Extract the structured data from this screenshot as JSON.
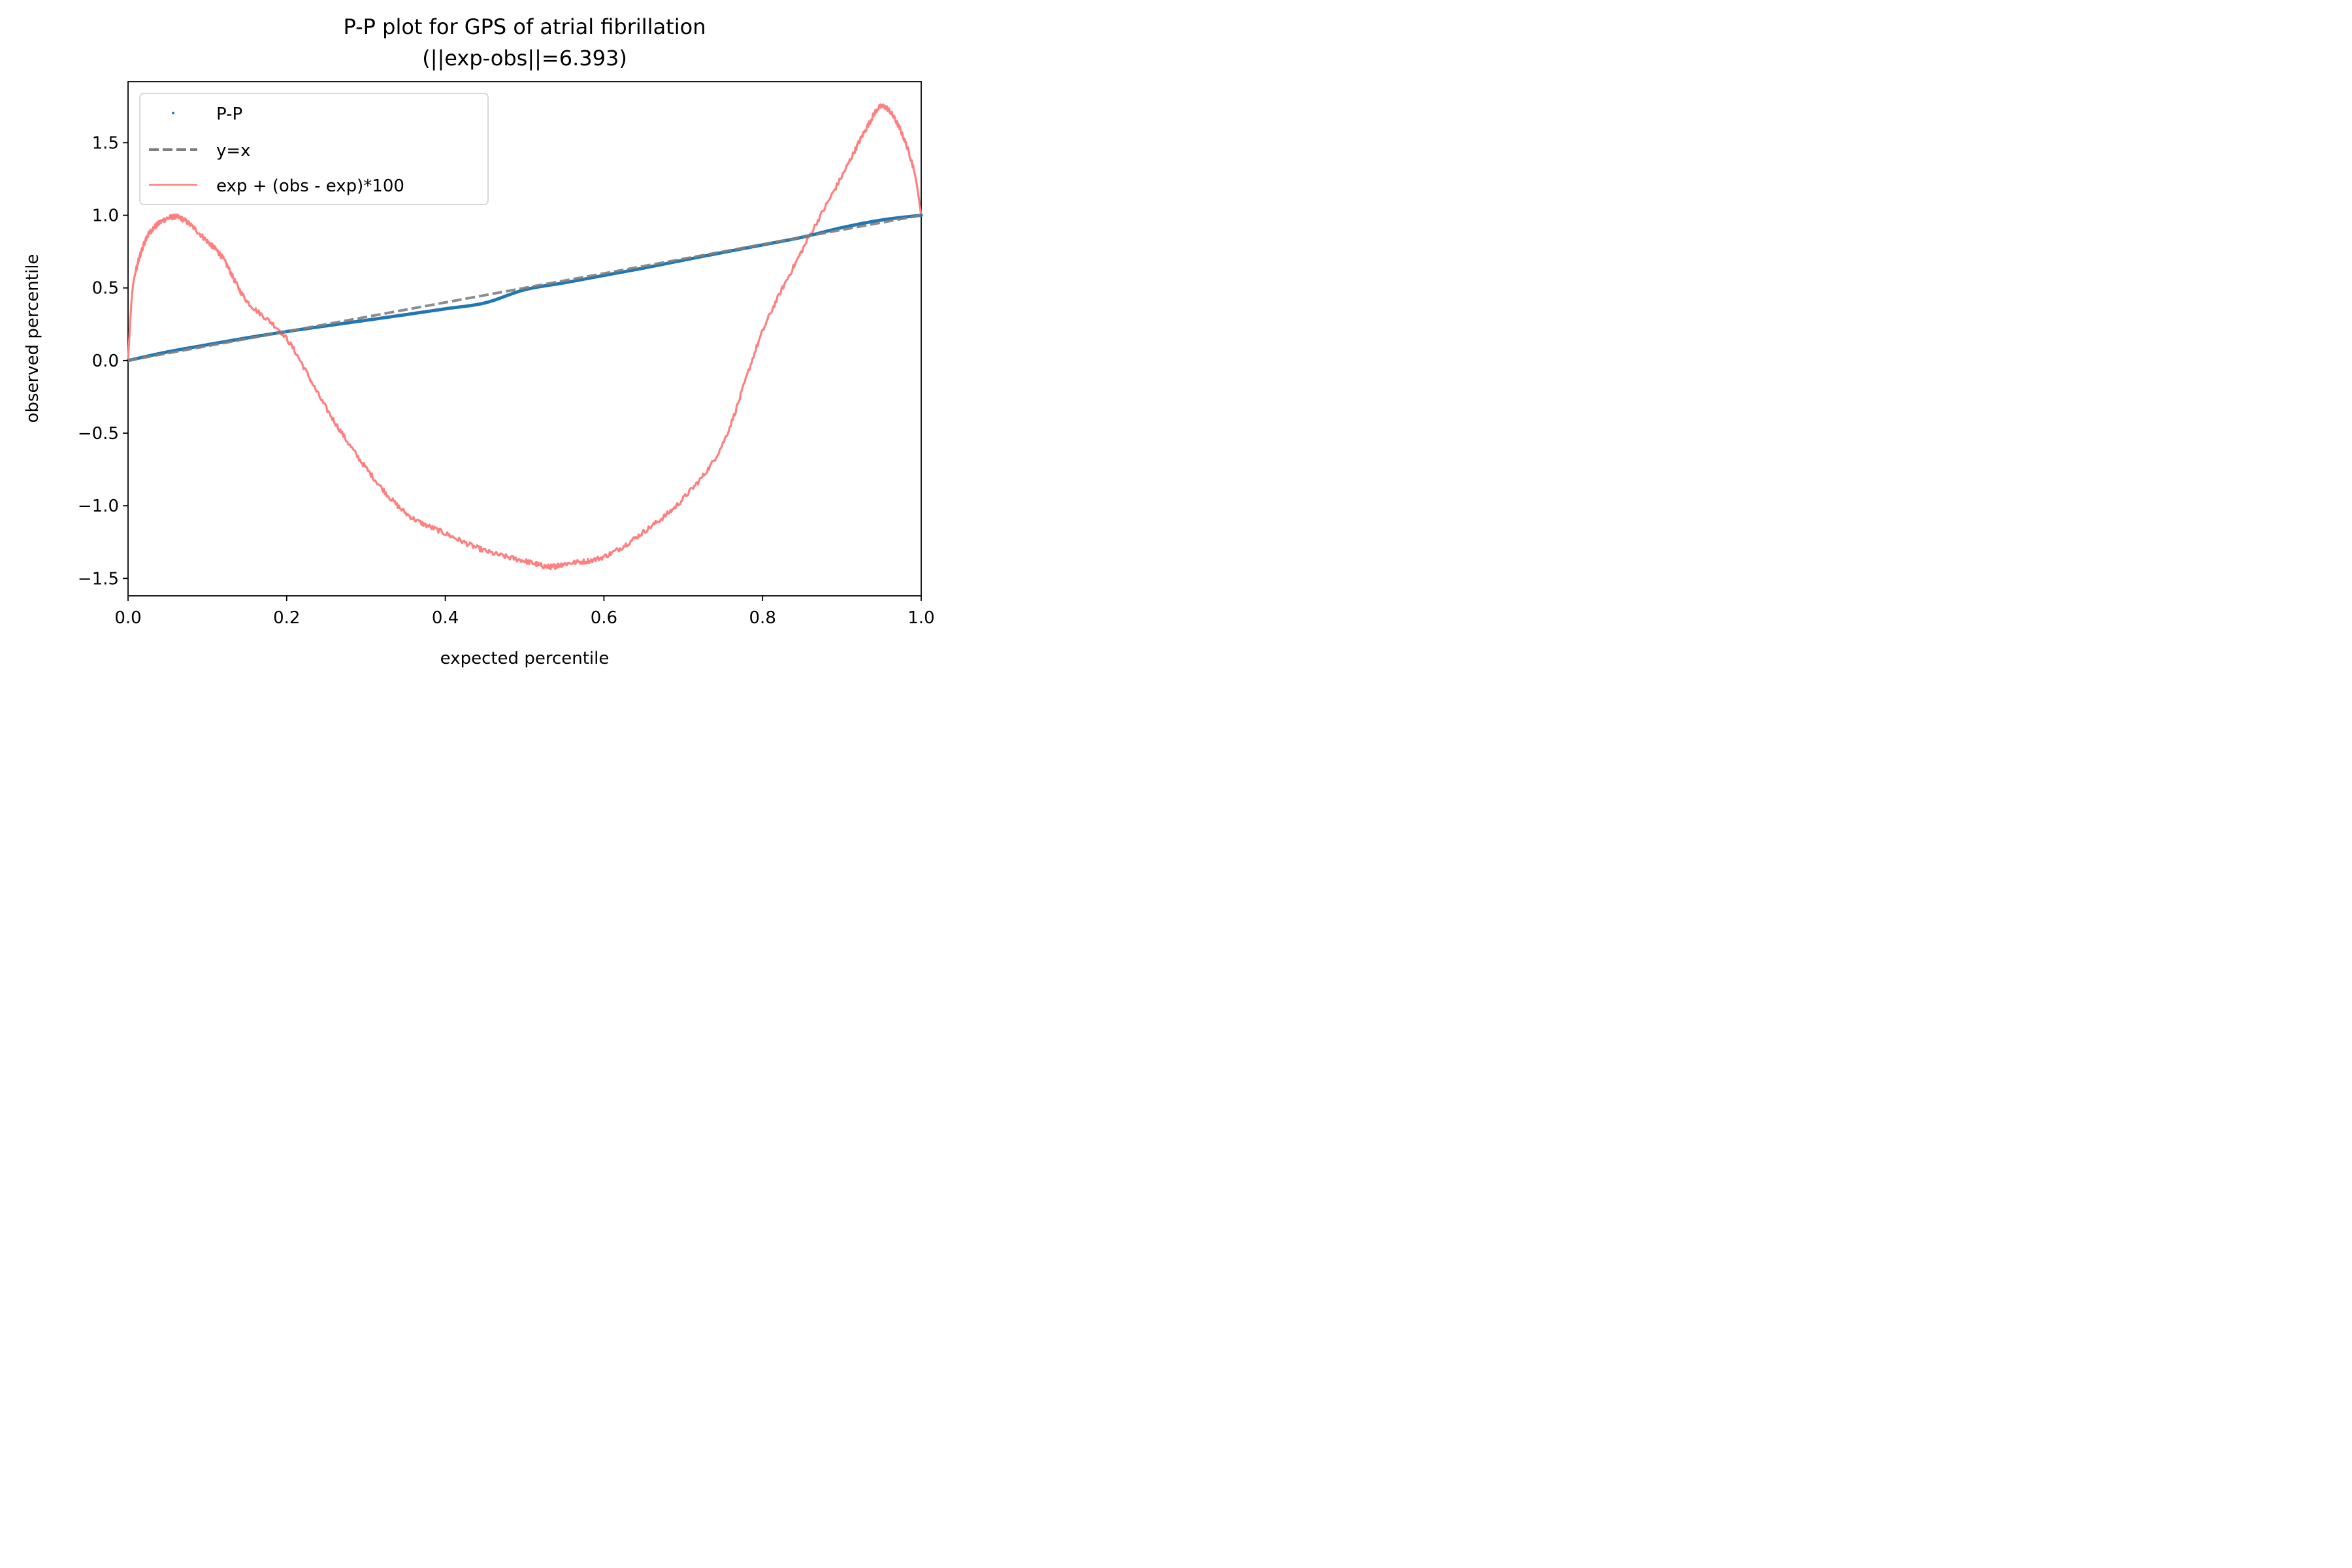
{
  "chart_data": {
    "type": "line",
    "title": "P-P plot for GPS of atrial fibrillation",
    "subtitle": "(||exp-obs||=6.393)",
    "xlabel": "expected percentile",
    "ylabel": "observed percentile",
    "xlim": [
      0.0,
      1.0
    ],
    "ylim": [
      -1.62,
      1.92
    ],
    "x_ticks": [
      0.0,
      0.2,
      0.4,
      0.6,
      0.8,
      1.0
    ],
    "x_tick_labels": [
      "0.0",
      "0.2",
      "0.4",
      "0.6",
      "0.8",
      "1.0"
    ],
    "y_ticks": [
      -1.5,
      -1.0,
      -0.5,
      0.0,
      0.5,
      1.0,
      1.5
    ],
    "y_tick_labels": [
      "−1.5",
      "−1.0",
      "−0.5",
      "0.0",
      "0.5",
      "1.0",
      "1.5"
    ],
    "grid": false,
    "legend_position": "upper-left",
    "series": [
      {
        "name": "P-P",
        "style": "points",
        "color": "#1f77b4",
        "x": [
          0.0,
          0.05,
          0.1,
          0.15,
          0.2,
          0.25,
          0.3,
          0.35,
          0.4,
          0.45,
          0.5,
          0.55,
          0.6,
          0.65,
          0.7,
          0.75,
          0.8,
          0.85,
          0.9,
          0.95,
          1.0
        ],
        "y": [
          0.0,
          0.0598,
          0.1087,
          0.1562,
          0.1995,
          0.2388,
          0.2771,
          0.316,
          0.3562,
          0.3969,
          0.4875,
          0.5353,
          0.5862,
          0.6367,
          0.6907,
          0.7441,
          0.7962,
          0.8492,
          0.9151,
          0.9675,
          1.0
        ]
      },
      {
        "name": "y=x",
        "style": "dashed",
        "color": "#7f7f7f",
        "x": [
          0.0,
          1.0
        ],
        "y": [
          0.0,
          1.0
        ]
      },
      {
        "name": "exp + (obs - exp)*100",
        "style": "line",
        "color": "#ff7f7f",
        "x": [
          0.0,
          0.005,
          0.01,
          0.02,
          0.03,
          0.05,
          0.07,
          0.1,
          0.12,
          0.15,
          0.2,
          0.25,
          0.3,
          0.35,
          0.4,
          0.45,
          0.5,
          0.53,
          0.55,
          0.6,
          0.65,
          0.7,
          0.75,
          0.8,
          0.85,
          0.9,
          0.93,
          0.95,
          0.97,
          0.99,
          1.0
        ],
        "y": [
          0.0,
          0.45,
          0.62,
          0.8,
          0.9,
          0.98,
          0.97,
          0.82,
          0.7,
          0.41,
          0.15,
          -0.33,
          -0.74,
          -1.05,
          -1.19,
          -1.31,
          -1.38,
          -1.42,
          -1.4,
          -1.35,
          -1.18,
          -0.95,
          -0.57,
          0.2,
          0.76,
          1.27,
          1.59,
          1.75,
          1.63,
          1.33,
          1.0
        ]
      }
    ]
  }
}
